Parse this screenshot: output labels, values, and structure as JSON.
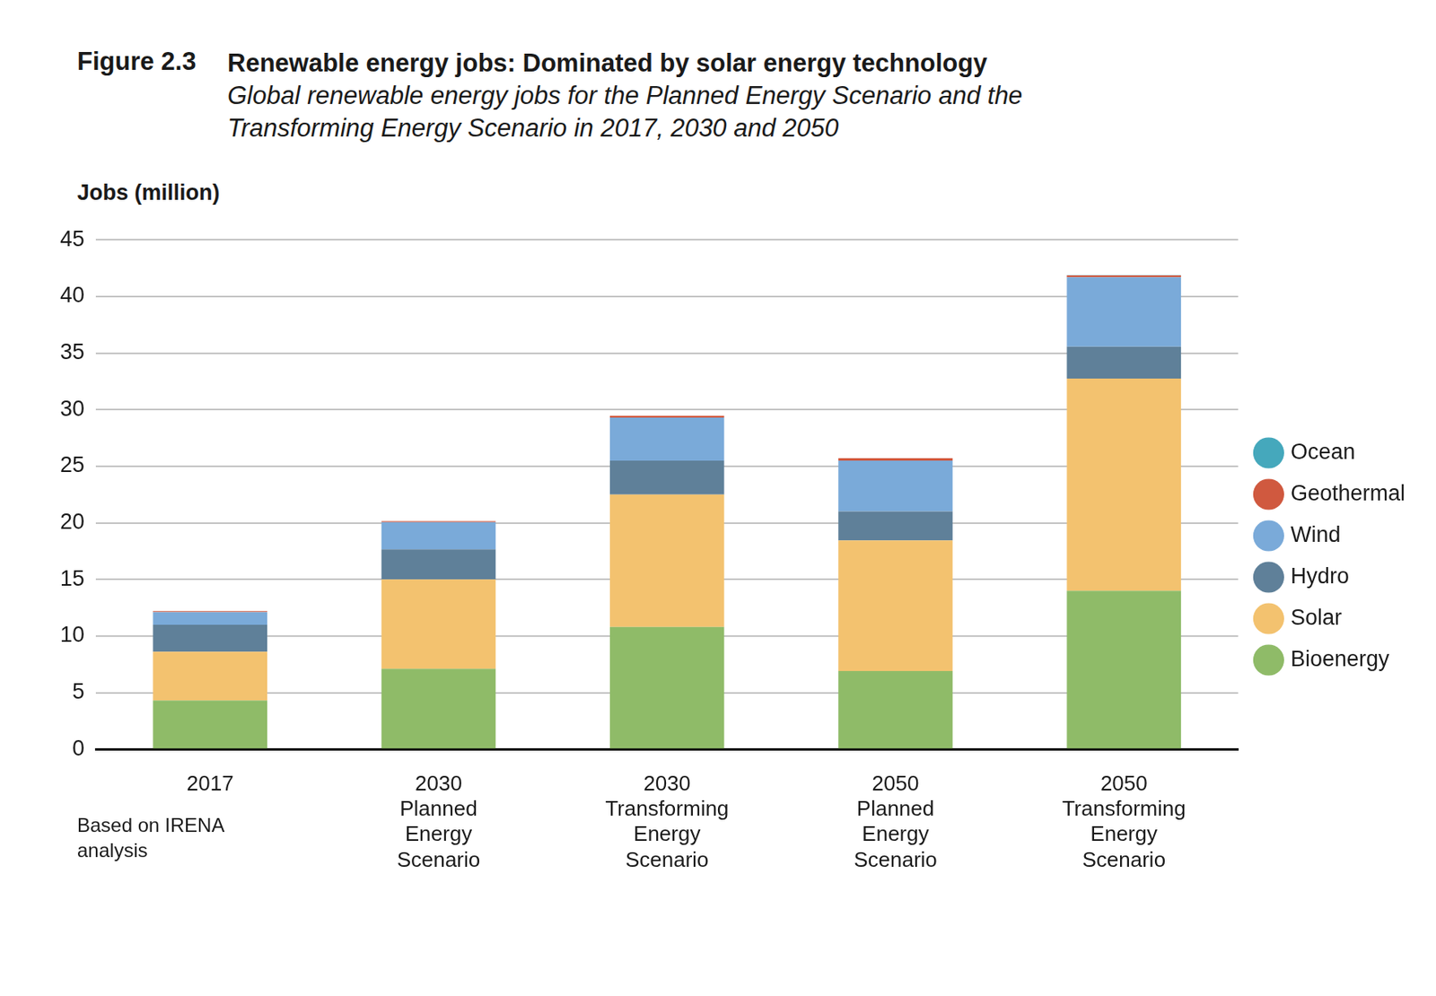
{
  "chart_data": {
    "type": "bar",
    "figure_label": "Figure 2.3",
    "title": "Renewable energy jobs: Dominated by solar energy technology",
    "subtitle": "Global renewable energy jobs for the Planned Energy Scenario and the Transforming Energy Scenario in 2017, 2030 and 2050",
    "y_label": "Jobs (million)",
    "note": "Based on IRENA analysis",
    "categories": [
      "2017",
      "2030 Planned Energy Scenario",
      "2030 Transforming Energy Scenario",
      "2050 Planned Energy Scenario",
      "2050 Transforming Energy Scenario"
    ],
    "series": [
      {
        "name": "Bioenergy",
        "color": "#8fbb68",
        "values": [
          4.3,
          7.1,
          10.8,
          6.9,
          14.0
        ]
      },
      {
        "name": "Solar",
        "color": "#f3c26f",
        "values": [
          4.3,
          7.9,
          11.7,
          11.55,
          18.75
        ]
      },
      {
        "name": "Hydro",
        "color": "#5f8099",
        "values": [
          2.4,
          2.65,
          3.0,
          2.55,
          2.8
        ]
      },
      {
        "name": "Wind",
        "color": "#7aaad9",
        "values": [
          1.1,
          2.4,
          3.8,
          4.5,
          6.15
        ]
      },
      {
        "name": "Geothermal",
        "color": "#d0593f",
        "values": [
          0.1,
          0.1,
          0.15,
          0.2,
          0.15
        ]
      },
      {
        "name": "Ocean",
        "color": "#45a8bc",
        "values": [
          0,
          0,
          0,
          0,
          0.02
        ]
      }
    ],
    "ylim": [
      0,
      45
    ],
    "yticks": [
      0,
      5,
      10,
      15,
      20,
      25,
      30,
      35,
      40,
      45
    ],
    "stacked": true,
    "grid": true,
    "legend": "right"
  }
}
